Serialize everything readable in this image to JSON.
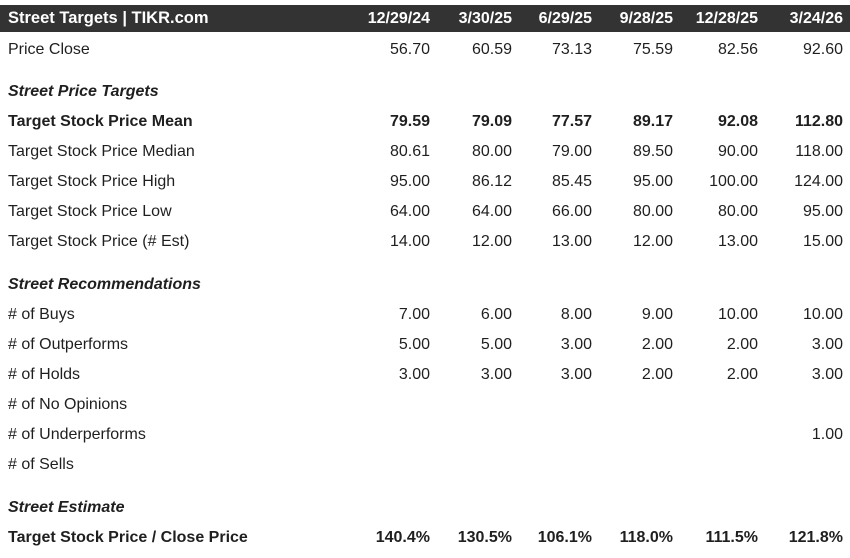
{
  "header": {
    "title": "Street Targets | TIKR.com",
    "columns": [
      "12/29/24",
      "3/30/25",
      "6/29/25",
      "9/28/25",
      "12/28/25",
      "3/24/26"
    ]
  },
  "colors": {
    "header_background": "#333333",
    "header_text": "#ffffff",
    "body_text": "#1f1f1f",
    "page_background": "#ffffff"
  },
  "table": {
    "rows": [
      {
        "label": "Price Close",
        "style": "normal",
        "values": [
          "56.70",
          "60.59",
          "73.13",
          "75.59",
          "82.56",
          "92.60"
        ]
      },
      {
        "label": "Street Price Targets",
        "style": "section",
        "values": [
          "",
          "",
          "",
          "",
          "",
          ""
        ]
      },
      {
        "label": "Target Stock Price Mean",
        "style": "bold",
        "values": [
          "79.59",
          "79.09",
          "77.57",
          "89.17",
          "92.08",
          "112.80"
        ]
      },
      {
        "label": "Target Stock Price Median",
        "style": "normal",
        "values": [
          "80.61",
          "80.00",
          "79.00",
          "89.50",
          "90.00",
          "118.00"
        ]
      },
      {
        "label": "Target Stock Price High",
        "style": "normal",
        "values": [
          "95.00",
          "86.12",
          "85.45",
          "95.00",
          "100.00",
          "124.00"
        ]
      },
      {
        "label": "Target Stock Price Low",
        "style": "normal",
        "values": [
          "64.00",
          "64.00",
          "66.00",
          "80.00",
          "80.00",
          "95.00"
        ]
      },
      {
        "label": "Target Stock Price (# Est)",
        "style": "normal",
        "values": [
          "14.00",
          "12.00",
          "13.00",
          "12.00",
          "13.00",
          "15.00"
        ]
      },
      {
        "label": "Street Recommendations",
        "style": "section",
        "values": [
          "",
          "",
          "",
          "",
          "",
          ""
        ]
      },
      {
        "label": "# of Buys",
        "style": "normal",
        "values": [
          "7.00",
          "6.00",
          "8.00",
          "9.00",
          "10.00",
          "10.00"
        ]
      },
      {
        "label": "# of Outperforms",
        "style": "normal",
        "values": [
          "5.00",
          "5.00",
          "3.00",
          "2.00",
          "2.00",
          "3.00"
        ]
      },
      {
        "label": "# of Holds",
        "style": "normal",
        "values": [
          "3.00",
          "3.00",
          "3.00",
          "2.00",
          "2.00",
          "3.00"
        ]
      },
      {
        "label": "# of No Opinions",
        "style": "normal",
        "values": [
          "",
          "",
          "",
          "",
          "",
          ""
        ]
      },
      {
        "label": "# of Underperforms",
        "style": "normal",
        "values": [
          "",
          "",
          "",
          "",
          "",
          "1.00"
        ]
      },
      {
        "label": "# of Sells",
        "style": "normal",
        "values": [
          "",
          "",
          "",
          "",
          "",
          ""
        ]
      },
      {
        "label": "Street Estimate",
        "style": "section",
        "values": [
          "",
          "",
          "",
          "",
          "",
          ""
        ]
      },
      {
        "label": "Target Stock Price / Close Price",
        "style": "bold",
        "values": [
          "140.4%",
          "130.5%",
          "106.1%",
          "118.0%",
          "111.5%",
          "121.8%"
        ]
      }
    ]
  }
}
